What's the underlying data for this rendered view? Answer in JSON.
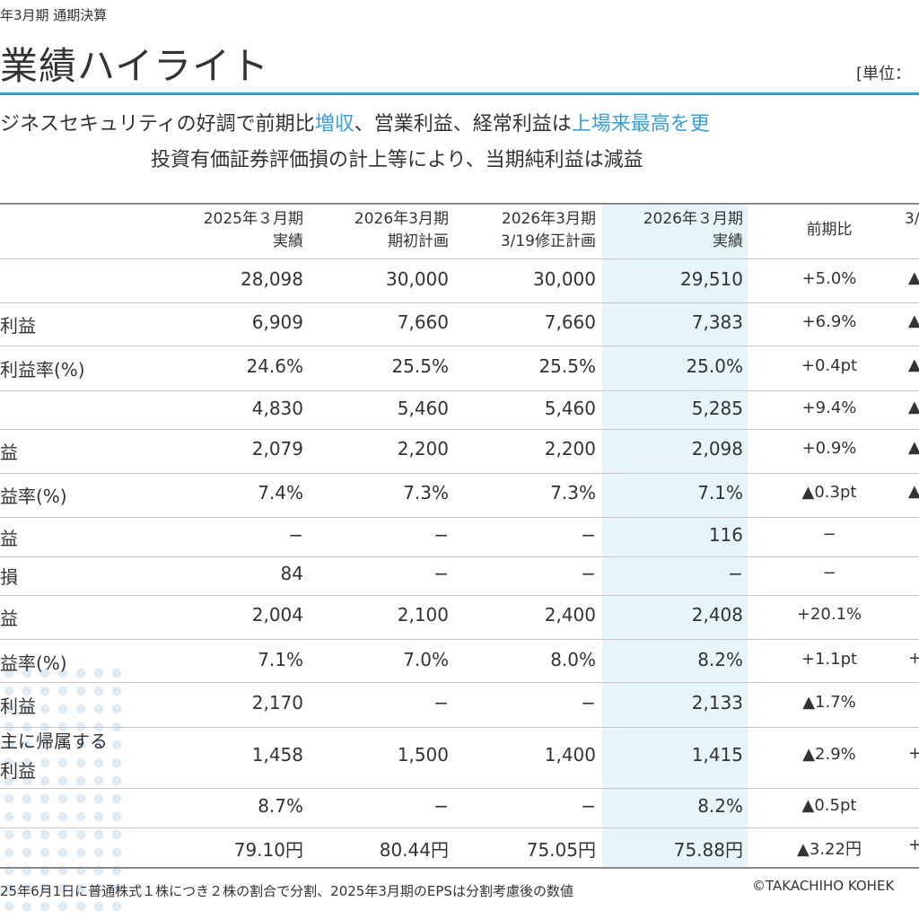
{
  "header": {
    "fiscal_period": "年3月期 通期決算",
    "title": "業績ハイライト",
    "unit": "[単位："
  },
  "headline": {
    "line1_parts": [
      {
        "text": "ジネスセキュリティの好調で前期比",
        "highlight": false
      },
      {
        "text": "増収",
        "highlight": true
      },
      {
        "text": "、営業利益、経常利益は",
        "highlight": false
      },
      {
        "text": "上場来最高を更",
        "highlight": true
      }
    ],
    "line2": "投資有価証券評価損の計上等により、当期純利益は減益"
  },
  "colors": {
    "accent": "#3a9fd8",
    "highlight_column": "#e7f4fa"
  },
  "table": {
    "columns": [
      {
        "line1": "2025年３月期",
        "line2": "実績"
      },
      {
        "line1": "2026年3月期",
        "line2": "期初計画"
      },
      {
        "line1": "2026年3月期",
        "line2": "3/19修正計画"
      },
      {
        "line1": "2026年３月期",
        "line2": "実績"
      },
      {
        "line1": "前期比",
        "line2": ""
      },
      {
        "line1": "3/",
        "line2": ""
      }
    ],
    "rows": [
      {
        "label": "",
        "label2": "",
        "values": [
          "28,098",
          "30,000",
          "30,000",
          "29,510",
          "+5.0%",
          "▲"
        ]
      },
      {
        "label": "利益",
        "label2": "",
        "values": [
          "6,909",
          "7,660",
          "7,660",
          "7,383",
          "+6.9%",
          "▲"
        ]
      },
      {
        "label": "利益率(%)",
        "label2": "",
        "values": [
          "24.6%",
          "25.5%",
          "25.5%",
          "25.0%",
          "+0.4pt",
          "▲"
        ]
      },
      {
        "label": "",
        "label2": "",
        "values": [
          "4,830",
          "5,460",
          "5,460",
          "5,285",
          "+9.4%",
          "▲"
        ]
      },
      {
        "label": "益",
        "label2": "",
        "values": [
          "2,079",
          "2,200",
          "2,200",
          "2,098",
          "+0.9%",
          "▲"
        ]
      },
      {
        "label": "益率(%)",
        "label2": "",
        "values": [
          "7.4%",
          "7.3%",
          "7.3%",
          "7.1%",
          "▲0.3pt",
          "▲"
        ]
      },
      {
        "label": "益",
        "label2": "",
        "values": [
          "−",
          "−",
          "−",
          "116",
          "−",
          ""
        ]
      },
      {
        "label": "損",
        "label2": "",
        "values": [
          "84",
          "−",
          "−",
          "−",
          "−",
          ""
        ]
      },
      {
        "label": "益",
        "label2": "",
        "values": [
          "2,004",
          "2,100",
          "2,400",
          "2,408",
          "+20.1%",
          ""
        ]
      },
      {
        "label": "益率(%)",
        "label2": "",
        "values": [
          "7.1%",
          "7.0%",
          "8.0%",
          "8.2%",
          "+1.1pt",
          "+"
        ]
      },
      {
        "label": "利益",
        "label2": "",
        "values": [
          "2,170",
          "−",
          "−",
          "2,133",
          "▲1.7%",
          ""
        ]
      },
      {
        "label": "主に帰属する",
        "label2": "利益",
        "values": [
          "1,458",
          "1,500",
          "1,400",
          "1,415",
          "▲2.9%",
          "+"
        ]
      },
      {
        "label": "",
        "label2": "",
        "values": [
          "8.7%",
          "−",
          "−",
          "8.2%",
          "▲0.5pt",
          ""
        ]
      },
      {
        "label": "",
        "label2": "",
        "values": [
          "79.10円",
          "80.44円",
          "75.05円",
          "75.88円",
          "▲3.22円",
          "+"
        ]
      }
    ]
  },
  "footer": {
    "note": "25年6月1日に普通株式１株につき２株の割合で分割、2025年3月期のEPSは分割考慮後の数値",
    "copyright": "©TAKACHIHO KOHEK"
  }
}
